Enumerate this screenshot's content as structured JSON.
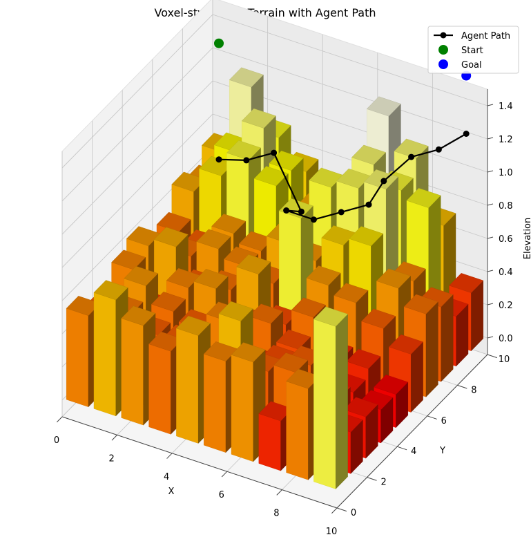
{
  "chart_data": {
    "type": "bar3d",
    "title": "Voxel-style Mars Terrain with Agent Path",
    "xlabel": "X",
    "ylabel": "Y",
    "zlabel": "Elevation",
    "xlim": [
      0,
      10
    ],
    "ylim": [
      0,
      10
    ],
    "zlim": [
      -0.1,
      1.5
    ],
    "x_ticks": [
      "0",
      "2",
      "4",
      "6",
      "8",
      "10"
    ],
    "y_ticks": [
      "0",
      "2",
      "4",
      "6",
      "8",
      "10"
    ],
    "z_ticks": [
      "0.0",
      "0.2",
      "0.4",
      "0.6",
      "0.8",
      "1.0",
      "1.2",
      "1.4"
    ],
    "grid": true,
    "legend_position": "top-right",
    "legend": [
      {
        "label": "Agent Path",
        "marker": "line-dot",
        "color": "#000000"
      },
      {
        "label": "Start",
        "marker": "dot",
        "color": "#008000"
      },
      {
        "label": "Goal",
        "marker": "dot",
        "color": "#0000ff"
      }
    ],
    "heights": [
      [
        0.55,
        0.7,
        0.6,
        0.5,
        0.65,
        0.55,
        0.6,
        0.3,
        0.55,
        0.98
      ],
      [
        0.45,
        0.52,
        0.45,
        0.45,
        0.35,
        0.7,
        0.45,
        0.5,
        0.4,
        0.25
      ],
      [
        0.4,
        0.6,
        0.5,
        0.45,
        0.55,
        0.35,
        0.4,
        0.45,
        0.3,
        0.25
      ],
      [
        0.55,
        0.35,
        0.55,
        0.6,
        0.45,
        0.5,
        0.4,
        0.35,
        0.25,
        0.2
      ],
      [
        0.6,
        0.65,
        0.45,
        0.5,
        0.65,
        0.4,
        0.5,
        0.3,
        0.3,
        0.2
      ],
      [
        0.4,
        0.5,
        0.6,
        0.55,
        0.5,
        0.95,
        0.6,
        0.55,
        0.45,
        0.35
      ],
      [
        0.5,
        0.45,
        0.6,
        0.55,
        0.65,
        0.6,
        0.75,
        0.8,
        0.6,
        0.5
      ],
      [
        0.65,
        0.8,
        0.95,
        0.85,
        0.7,
        0.95,
        1.0,
        1.05,
        0.55,
        0.45
      ],
      [
        0.6,
        0.85,
        1.05,
        0.85,
        0.65,
        0.5,
        1.05,
        0.95,
        0.9,
        0.3
      ],
      [
        0.7,
        1.15,
        0.9,
        0.75,
        0.7,
        0.6,
        1.25,
        1.05,
        0.7,
        0.35
      ]
    ],
    "agent_path": [
      {
        "x": 0,
        "y": 9,
        "z": 0.6
      },
      {
        "x": 1,
        "y": 9,
        "z": 0.65
      },
      {
        "x": 2,
        "y": 9,
        "z": 0.75
      },
      {
        "x": 3,
        "y": 9,
        "z": 0.45
      },
      {
        "x": 3,
        "y": 8,
        "z": 0.55
      },
      {
        "x": 4,
        "y": 8,
        "z": 0.55
      },
      {
        "x": 5,
        "y": 8,
        "z": 0.65
      },
      {
        "x": 6,
        "y": 8,
        "z": 0.75
      },
      {
        "x": 6,
        "y": 9,
        "z": 0.8
      },
      {
        "x": 7,
        "y": 9,
        "z": 1.0
      },
      {
        "x": 8,
        "y": 9,
        "z": 1.1
      },
      {
        "x": 9,
        "y": 9,
        "z": 1.25
      }
    ],
    "start": {
      "x": 0,
      "y": 9,
      "z": 1.3
    },
    "goal": {
      "x": 9,
      "y": 9,
      "z": 1.6
    }
  }
}
